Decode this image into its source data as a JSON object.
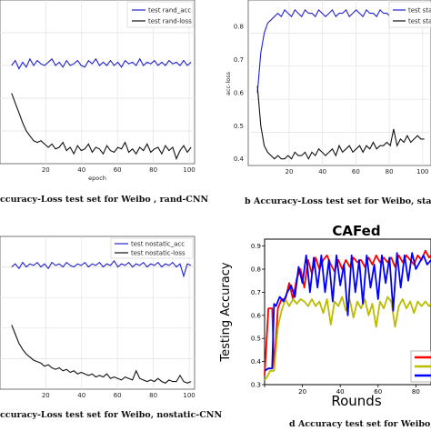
{
  "chart_data": [
    {
      "type": "line",
      "caption": "ccuracy-Loss test set for Weibo , rand-CNN",
      "xlabel": "epoch",
      "xticks": [
        "20",
        "40",
        "60",
        "80",
        "100"
      ],
      "legend": [
        "test rand_acc",
        "test rand-loss"
      ],
      "colors": [
        "#2222cc",
        "#111111"
      ],
      "series": [
        {
          "name": "test rand_acc",
          "y_frac": [
            0.6,
            0.63,
            0.58,
            0.62,
            0.59,
            0.64,
            0.6,
            0.63,
            0.61,
            0.6,
            0.62,
            0.64,
            0.6,
            0.62,
            0.59,
            0.63,
            0.6,
            0.61,
            0.63,
            0.6,
            0.59,
            0.63,
            0.61,
            0.64,
            0.6,
            0.62,
            0.6,
            0.63,
            0.6,
            0.62,
            0.59,
            0.63,
            0.61,
            0.62,
            0.6,
            0.64,
            0.6,
            0.62,
            0.61,
            0.63,
            0.6,
            0.62,
            0.6,
            0.63,
            0.61,
            0.62,
            0.6,
            0.63,
            0.6,
            0.62
          ]
        },
        {
          "name": "test rand-loss",
          "y_frac": [
            0.43,
            0.37,
            0.31,
            0.25,
            0.2,
            0.17,
            0.14,
            0.13,
            0.14,
            0.12,
            0.1,
            0.12,
            0.09,
            0.1,
            0.13,
            0.08,
            0.1,
            0.06,
            0.11,
            0.08,
            0.09,
            0.12,
            0.07,
            0.1,
            0.09,
            0.06,
            0.11,
            0.08,
            0.07,
            0.1,
            0.09,
            0.13,
            0.07,
            0.09,
            0.06,
            0.1,
            0.08,
            0.12,
            0.07,
            0.09,
            0.1,
            0.06,
            0.11,
            0.08,
            0.1,
            0.03,
            0.08,
            0.11,
            0.07,
            0.1
          ]
        }
      ]
    },
    {
      "type": "line",
      "caption": "b  Accuracy-Loss test set for Weibo, static-C",
      "xlabel": "epoch",
      "ylabel": "acc-loss",
      "xticks": [
        "20",
        "40",
        "60",
        "80",
        "100"
      ],
      "yticks": [
        "0.4",
        "0.5",
        "0.6",
        "0.7",
        "0.8"
      ],
      "ylim": [
        0.38,
        0.88
      ],
      "legend": [
        "test sta",
        "test sta"
      ],
      "colors": [
        "#2222cc",
        "#111111"
      ],
      "series": [
        {
          "name": "test sta",
          "values": [
            0.6,
            0.72,
            0.78,
            0.81,
            0.82,
            0.83,
            0.84,
            0.83,
            0.85,
            0.84,
            0.83,
            0.85,
            0.84,
            0.83,
            0.85,
            0.84,
            0.84,
            0.83,
            0.85,
            0.84,
            0.83,
            0.84,
            0.85,
            0.83,
            0.84,
            0.84,
            0.85,
            0.83,
            0.84,
            0.85,
            0.84,
            0.83,
            0.85,
            0.84,
            0.84,
            0.83,
            0.85,
            0.84,
            0.84,
            0.83,
            0.85,
            0.84,
            0.84,
            0.85,
            0.83,
            0.84,
            0.84,
            0.85,
            0.84,
            0.84
          ]
        },
        {
          "name": "test sta",
          "values": [
            0.62,
            0.5,
            0.44,
            0.42,
            0.41,
            0.4,
            0.41,
            0.4,
            0.4,
            0.41,
            0.4,
            0.42,
            0.41,
            0.41,
            0.42,
            0.4,
            0.42,
            0.41,
            0.43,
            0.42,
            0.41,
            0.42,
            0.43,
            0.41,
            0.44,
            0.42,
            0.43,
            0.44,
            0.42,
            0.43,
            0.44,
            0.42,
            0.44,
            0.43,
            0.45,
            0.43,
            0.44,
            0.44,
            0.45,
            0.44,
            0.49,
            0.44,
            0.46,
            0.45,
            0.47,
            0.45,
            0.46,
            0.47,
            0.46,
            0.46
          ]
        }
      ]
    },
    {
      "type": "line",
      "caption": "ccuracy-Loss test set for Weibo, nostatic-CNN",
      "xticks": [
        "20",
        "40",
        "60",
        "80",
        "100"
      ],
      "legend": [
        "test nostatic_acc",
        "test nostatic-loss"
      ],
      "colors": [
        "#2222cc",
        "#111111"
      ],
      "series": [
        {
          "name": "test nostatic_acc",
          "y_frac": [
            0.8,
            0.82,
            0.79,
            0.83,
            0.8,
            0.82,
            0.81,
            0.83,
            0.8,
            0.82,
            0.79,
            0.83,
            0.81,
            0.82,
            0.8,
            0.83,
            0.81,
            0.8,
            0.82,
            0.81,
            0.83,
            0.8,
            0.82,
            0.81,
            0.83,
            0.8,
            0.82,
            0.81,
            0.84,
            0.8,
            0.82,
            0.81,
            0.83,
            0.8,
            0.82,
            0.81,
            0.83,
            0.8,
            0.82,
            0.81,
            0.83,
            0.8,
            0.82,
            0.81,
            0.83,
            0.8,
            0.82,
            0.74,
            0.82,
            0.81
          ]
        },
        {
          "name": "test nostatic-loss",
          "y_frac": [
            0.42,
            0.36,
            0.3,
            0.26,
            0.23,
            0.21,
            0.19,
            0.18,
            0.17,
            0.15,
            0.16,
            0.14,
            0.13,
            0.14,
            0.12,
            0.13,
            0.11,
            0.12,
            0.1,
            0.11,
            0.1,
            0.09,
            0.1,
            0.08,
            0.09,
            0.08,
            0.1,
            0.07,
            0.08,
            0.07,
            0.06,
            0.08,
            0.07,
            0.06,
            0.12,
            0.07,
            0.06,
            0.05,
            0.06,
            0.05,
            0.07,
            0.05,
            0.04,
            0.06,
            0.05,
            0.05,
            0.09,
            0.05,
            0.04,
            0.05
          ]
        }
      ]
    },
    {
      "type": "line",
      "title": "CAFed",
      "caption": "d  Accuracy test set for Weibo, CAFed",
      "xlabel": "Rounds",
      "ylabel": "Testing Accuracy",
      "xticks": [
        0,
        20,
        40,
        60,
        80
      ],
      "xlim": [
        0,
        88
      ],
      "yticks": [
        "0.3",
        "0.4",
        "0.5",
        "0.6",
        "0.7",
        "0.8",
        "0.9"
      ],
      "ylim": [
        0.3,
        0.93
      ],
      "colors": [
        "#ff0000",
        "#bbbb00",
        "#0000ff"
      ],
      "series": [
        {
          "color": "red",
          "x": [
            0,
            2,
            4,
            5,
            7,
            9,
            11,
            13,
            15,
            17,
            19,
            21,
            23,
            25,
            27,
            29,
            31,
            33,
            35,
            37,
            39,
            41,
            43,
            45,
            47,
            49,
            51,
            53,
            55,
            57,
            59,
            61,
            63,
            65,
            67,
            69,
            71,
            73,
            75,
            77,
            79,
            81,
            83,
            85,
            87,
            88
          ],
          "values": [
            0.34,
            0.63,
            0.63,
            0.37,
            0.63,
            0.67,
            0.67,
            0.74,
            0.67,
            0.76,
            0.8,
            0.72,
            0.84,
            0.78,
            0.85,
            0.8,
            0.84,
            0.86,
            0.82,
            0.79,
            0.84,
            0.8,
            0.84,
            0.81,
            0.85,
            0.83,
            0.84,
            0.81,
            0.85,
            0.82,
            0.86,
            0.83,
            0.85,
            0.83,
            0.85,
            0.81,
            0.86,
            0.83,
            0.86,
            0.84,
            0.82,
            0.86,
            0.84,
            0.88,
            0.85,
            0.86
          ]
        },
        {
          "color": "yellow",
          "x": [
            0,
            1,
            3,
            5,
            7,
            9,
            11,
            13,
            15,
            17,
            19,
            21,
            23,
            25,
            27,
            29,
            31,
            33,
            35,
            37,
            39,
            41,
            43,
            45,
            47,
            49,
            51,
            53,
            55,
            57,
            59,
            61,
            63,
            65,
            67,
            69,
            71,
            73,
            75,
            77,
            79,
            81,
            83,
            85,
            87,
            88
          ],
          "values": [
            0.32,
            0.33,
            0.36,
            0.36,
            0.55,
            0.62,
            0.67,
            0.64,
            0.67,
            0.65,
            0.67,
            0.66,
            0.64,
            0.67,
            0.64,
            0.66,
            0.61,
            0.67,
            0.56,
            0.66,
            0.64,
            0.68,
            0.62,
            0.67,
            0.59,
            0.66,
            0.63,
            0.67,
            0.6,
            0.65,
            0.55,
            0.66,
            0.63,
            0.68,
            0.66,
            0.55,
            0.64,
            0.67,
            0.63,
            0.66,
            0.61,
            0.66,
            0.64,
            0.66,
            0.64,
            0.65
          ]
        },
        {
          "color": "blue",
          "x": [
            0,
            2,
            4,
            5,
            6,
            8,
            10,
            12,
            14,
            16,
            18,
            20,
            22,
            24,
            26,
            28,
            30,
            32,
            34,
            36,
            38,
            40,
            42,
            44,
            46,
            48,
            50,
            52,
            54,
            56,
            58,
            60,
            62,
            64,
            66,
            68,
            70,
            72,
            74,
            76,
            78,
            80,
            82,
            84,
            86,
            88
          ],
          "values": [
            0.36,
            0.37,
            0.37,
            0.65,
            0.64,
            0.68,
            0.66,
            0.7,
            0.73,
            0.68,
            0.81,
            0.74,
            0.86,
            0.7,
            0.85,
            0.72,
            0.86,
            0.7,
            0.84,
            0.66,
            0.86,
            0.73,
            0.82,
            0.6,
            0.86,
            0.7,
            0.84,
            0.65,
            0.86,
            0.72,
            0.82,
            0.67,
            0.86,
            0.74,
            0.85,
            0.62,
            0.87,
            0.72,
            0.86,
            0.75,
            0.87,
            0.8,
            0.83,
            0.86,
            0.82,
            0.84
          ]
        }
      ]
    }
  ]
}
